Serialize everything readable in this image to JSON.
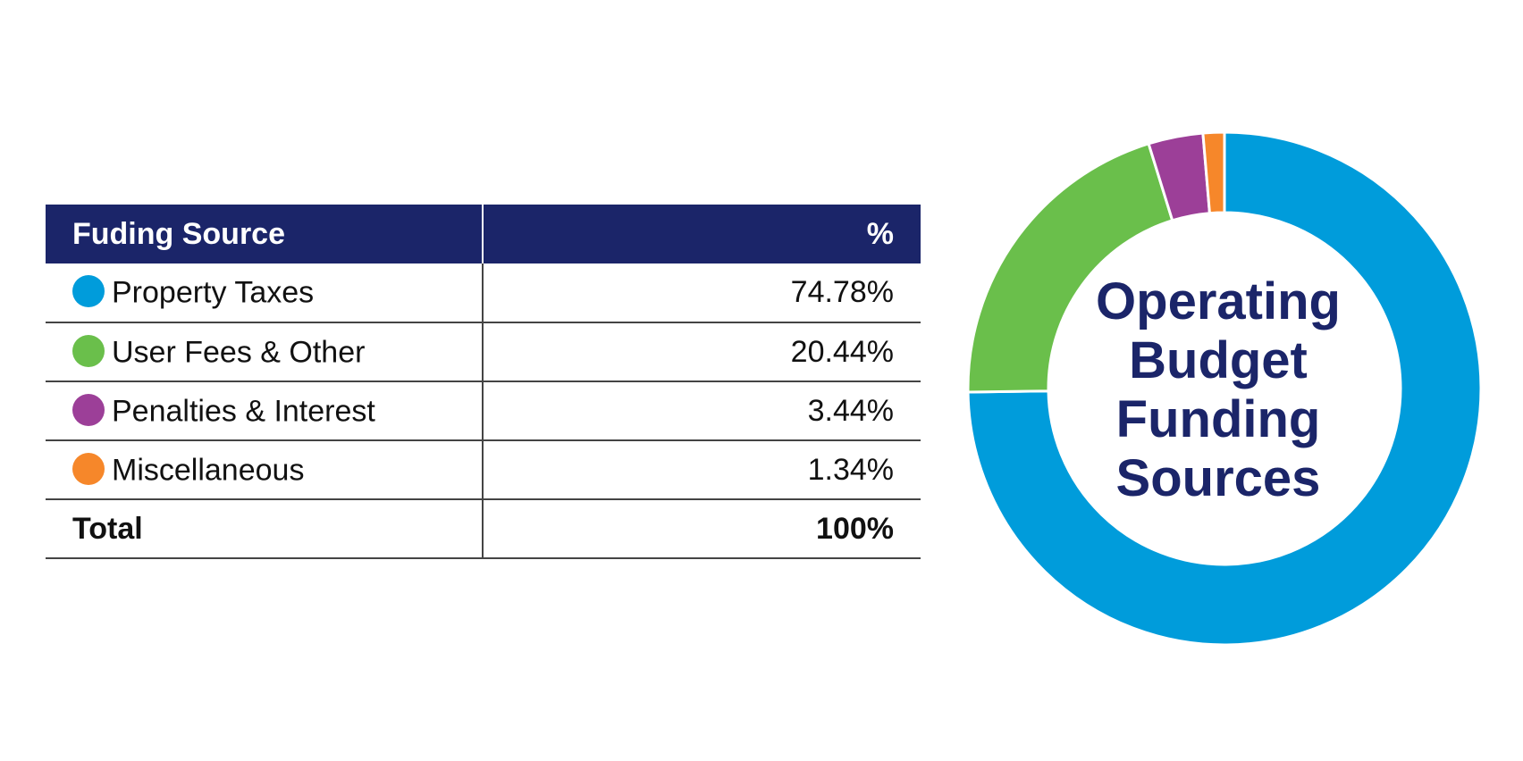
{
  "table": {
    "header": {
      "source": "Fuding Source",
      "percent": "%"
    },
    "rows": [
      {
        "label": "Property Taxes",
        "value": "74.78%",
        "color": "#009cdb"
      },
      {
        "label": "User Fees & Other",
        "value": "20.44%",
        "color": "#6abf4b"
      },
      {
        "label": "Penalties & Interest",
        "value": "3.44%",
        "color": "#9c3f98"
      },
      {
        "label": "Miscellaneous",
        "value": "1.34%",
        "color": "#f6872a"
      }
    ],
    "total": {
      "label": "Total",
      "value": "100%"
    }
  },
  "chart_data": {
    "type": "pie",
    "title_lines": [
      "Operating",
      "Budget",
      "Funding",
      "Sources"
    ],
    "categories": [
      "Property Taxes",
      "User Fees & Other",
      "Penalties & Interest",
      "Miscellaneous"
    ],
    "values": [
      74.78,
      20.44,
      3.44,
      1.34
    ],
    "colors": [
      "#009cdb",
      "#6abf4b",
      "#9c3f98",
      "#f6872a"
    ],
    "donut": true,
    "start": "top",
    "direction": "clockwise"
  },
  "colors": {
    "header_background": "#1b2569",
    "title_text": "#1b2569"
  }
}
